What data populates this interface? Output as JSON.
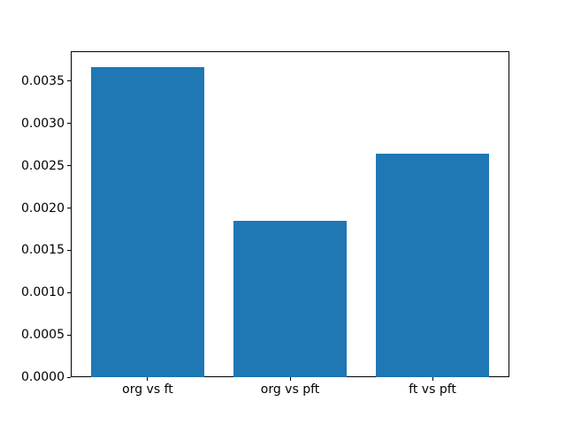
{
  "chart_data": {
    "type": "bar",
    "title": "",
    "xlabel": "",
    "ylabel": "",
    "categories": [
      "org vs ft",
      "org vs pft",
      "ft vs pft"
    ],
    "values": [
      0.00367,
      0.00185,
      0.00264
    ],
    "ylim": [
      0,
      0.003854
    ],
    "yticks": [
      0.0,
      0.0005,
      0.001,
      0.0015,
      0.002,
      0.0025,
      0.003,
      0.0035
    ],
    "ytick_labels": [
      "0.0000",
      "0.0005",
      "0.0010",
      "0.0015",
      "0.0020",
      "0.0025",
      "0.0030",
      "0.0035"
    ],
    "bar_width_fraction": 0.8,
    "x_margin": 0.54,
    "grid": false,
    "legend": null,
    "colors": {
      "bar": "#1f77b4",
      "spine": "#000000",
      "background": "#ffffff",
      "text": "#000000"
    }
  }
}
